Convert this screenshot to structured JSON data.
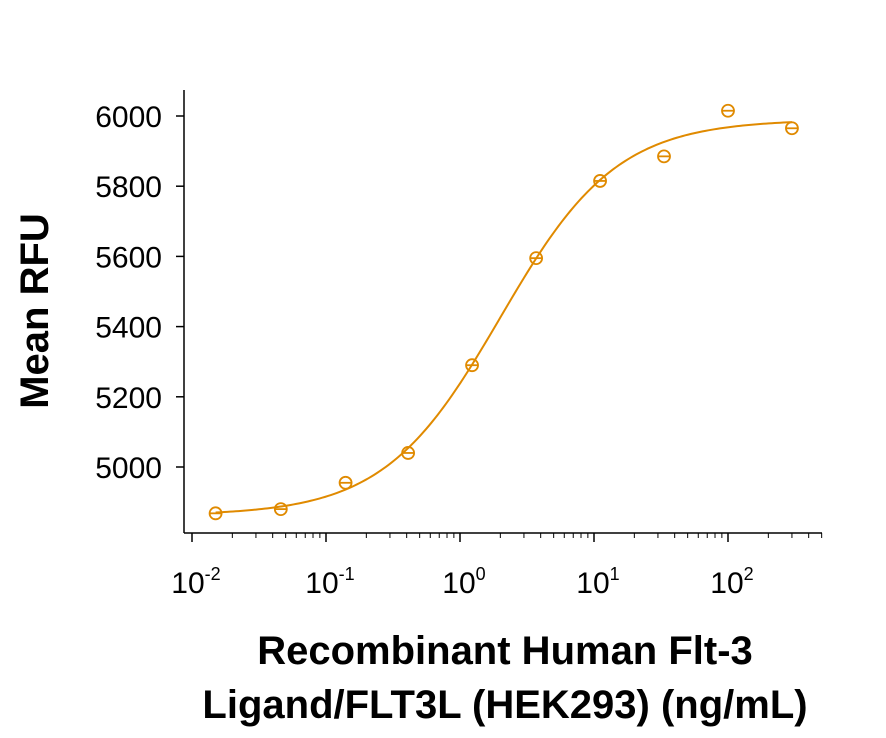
{
  "chart_data": {
    "type": "scatter",
    "title": "",
    "xlabel": [
      "Recombinant Human Flt-3",
      "Ligand/FLT3L (HEK293) (ng/mL)"
    ],
    "ylabel": "Mean RFU",
    "x_scale": "log10",
    "xlim": [
      0.01,
      500
    ],
    "ylim": [
      4860,
      6060
    ],
    "x_ticks": [
      {
        "value": 0.01,
        "base": "10",
        "exp": "-2"
      },
      {
        "value": 0.1,
        "base": "10",
        "exp": "-1"
      },
      {
        "value": 1,
        "base": "10",
        "exp": "0"
      },
      {
        "value": 10,
        "base": "10",
        "exp": "1"
      },
      {
        "value": 100,
        "base": "10",
        "exp": "2"
      }
    ],
    "y_ticks": [
      5000,
      5200,
      5400,
      5600,
      5800,
      6000
    ],
    "grid": false,
    "color": "#e08a00",
    "series": [
      {
        "x": [
          0.015,
          0.046,
          0.14,
          0.41,
          1.23,
          3.7,
          11.1,
          33.3,
          100,
          300
        ],
        "y": [
          4868,
          4880,
          4955,
          5040,
          5290,
          5595,
          5815,
          5885,
          6015,
          5965
        ]
      }
    ],
    "fit": {
      "type": "4PL",
      "bottom": 4862,
      "top": 5990,
      "ec50": 2.0,
      "hill": 1.0
    }
  }
}
